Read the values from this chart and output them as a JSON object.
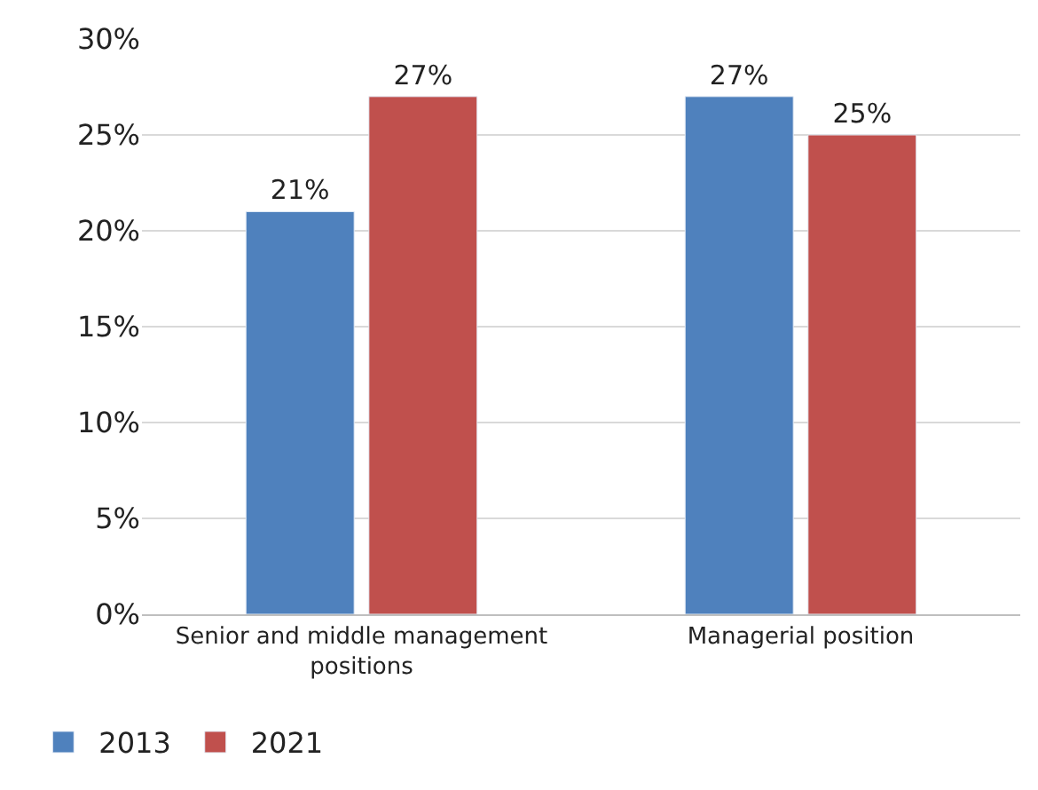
{
  "chart_data": {
    "type": "bar",
    "categories": [
      "Senior and middle management positions",
      "Managerial position"
    ],
    "series": [
      {
        "name": "2013",
        "color": "#4f81bd",
        "values": [
          21,
          27
        ],
        "value_labels": [
          "21%",
          "27%"
        ]
      },
      {
        "name": "2021",
        "color": "#c0504d",
        "values": [
          27,
          25
        ],
        "value_labels": [
          "27%",
          "25%"
        ]
      }
    ],
    "ylim": [
      0,
      30
    ],
    "yticks": [
      {
        "value": 0,
        "label": "0%"
      },
      {
        "value": 5,
        "label": "5%"
      },
      {
        "value": 10,
        "label": "10%"
      },
      {
        "value": 15,
        "label": "15%"
      },
      {
        "value": 20,
        "label": "20%"
      },
      {
        "value": 25,
        "label": "25%"
      },
      {
        "value": 30,
        "label": "30%"
      }
    ],
    "grid": "y",
    "legend": "bottom left"
  }
}
